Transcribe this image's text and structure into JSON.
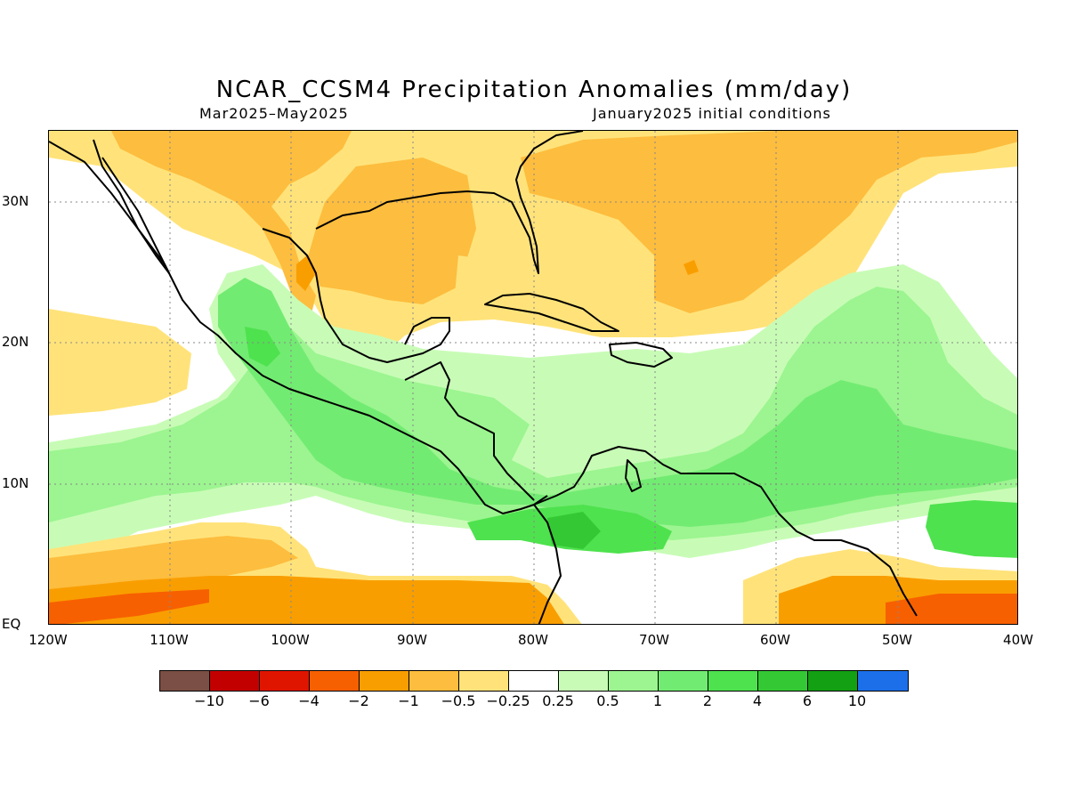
{
  "title": "NCAR_CCSM4 Precipitation Anomalies (mm/day)",
  "subtitle_left": "Mar2025–May2025",
  "subtitle_right": "January2025 initial conditions",
  "map": {
    "region": "Central America / Caribbean",
    "lon_range": [
      -120,
      -40
    ],
    "lat_range": [
      0,
      35
    ],
    "lat_labels": [
      "30N",
      "20N",
      "10N",
      "EQ"
    ],
    "lon_labels": [
      "120W",
      "110W",
      "100W",
      "90W",
      "80W",
      "70W",
      "60W",
      "50W",
      "40W"
    ],
    "gridlines": "dotted"
  },
  "colorbar": {
    "colors": [
      "#7b4f45",
      "#c30000",
      "#e01500",
      "#f76000",
      "#f99e00",
      "#fdbd3e",
      "#ffe37a",
      "#ffffff",
      "#c8fcb6",
      "#9cf590",
      "#72eb72",
      "#4ee24e",
      "#34c934",
      "#13a013",
      "#1c6fe8"
    ],
    "labels": [
      "−10",
      "−6",
      "−4",
      "−2",
      "−1",
      "−0.5",
      "−0.25",
      "0.25",
      "0.5",
      "1",
      "2",
      "4",
      "6",
      "10"
    ]
  },
  "legend_colors": {
    "neg_small": "#ffe37a",
    "neg_1": "#fdbd3e",
    "neg_2": "#f99e00",
    "neg_4": "#f76000",
    "pos_small": "#c8fcb6",
    "pos_1": "#9cf590",
    "pos_2": "#72eb72",
    "pos_4": "#4ee24e",
    "pos_6": "#34c934"
  }
}
